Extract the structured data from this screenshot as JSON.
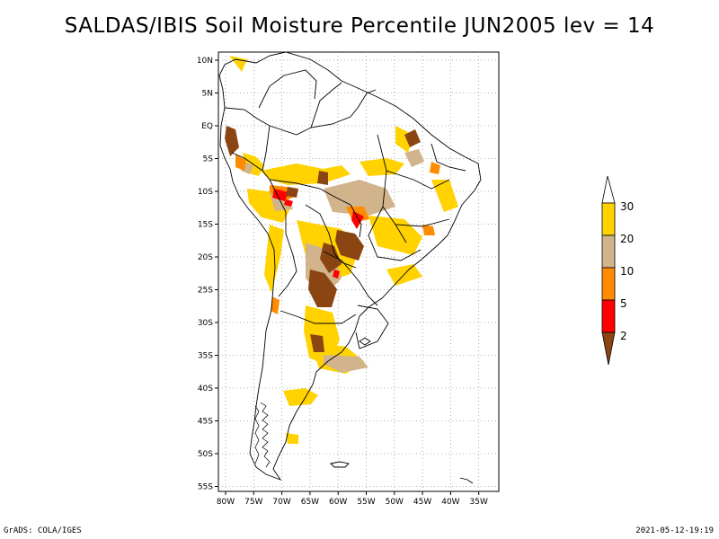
{
  "title": "SALDAS/IBIS Soil Moisture Percentile JUN2005 lev = 14",
  "footer_left": "GrADS: COLA/IGES",
  "footer_right": "2021-05-12-19:19",
  "map": {
    "lat_labels": [
      "10N",
      "5N",
      "EQ",
      "5S",
      "10S",
      "15S",
      "20S",
      "25S",
      "30S",
      "35S",
      "40S",
      "45S",
      "50S",
      "55S"
    ],
    "lon_labels": [
      "80W",
      "75W",
      "70W",
      "65W",
      "60W",
      "55W",
      "50W",
      "45W",
      "40W",
      "35W"
    ]
  },
  "legend": {
    "labels": [
      "30",
      "20",
      "10",
      "5",
      "2"
    ],
    "colors": {
      "above_30": "#ffffff",
      "20_30": "#ffd200",
      "10_20": "#d2b48c",
      "5_10": "#ff8c00",
      "2_5": "#ff0000",
      "below_2": "#8b4513"
    }
  }
}
